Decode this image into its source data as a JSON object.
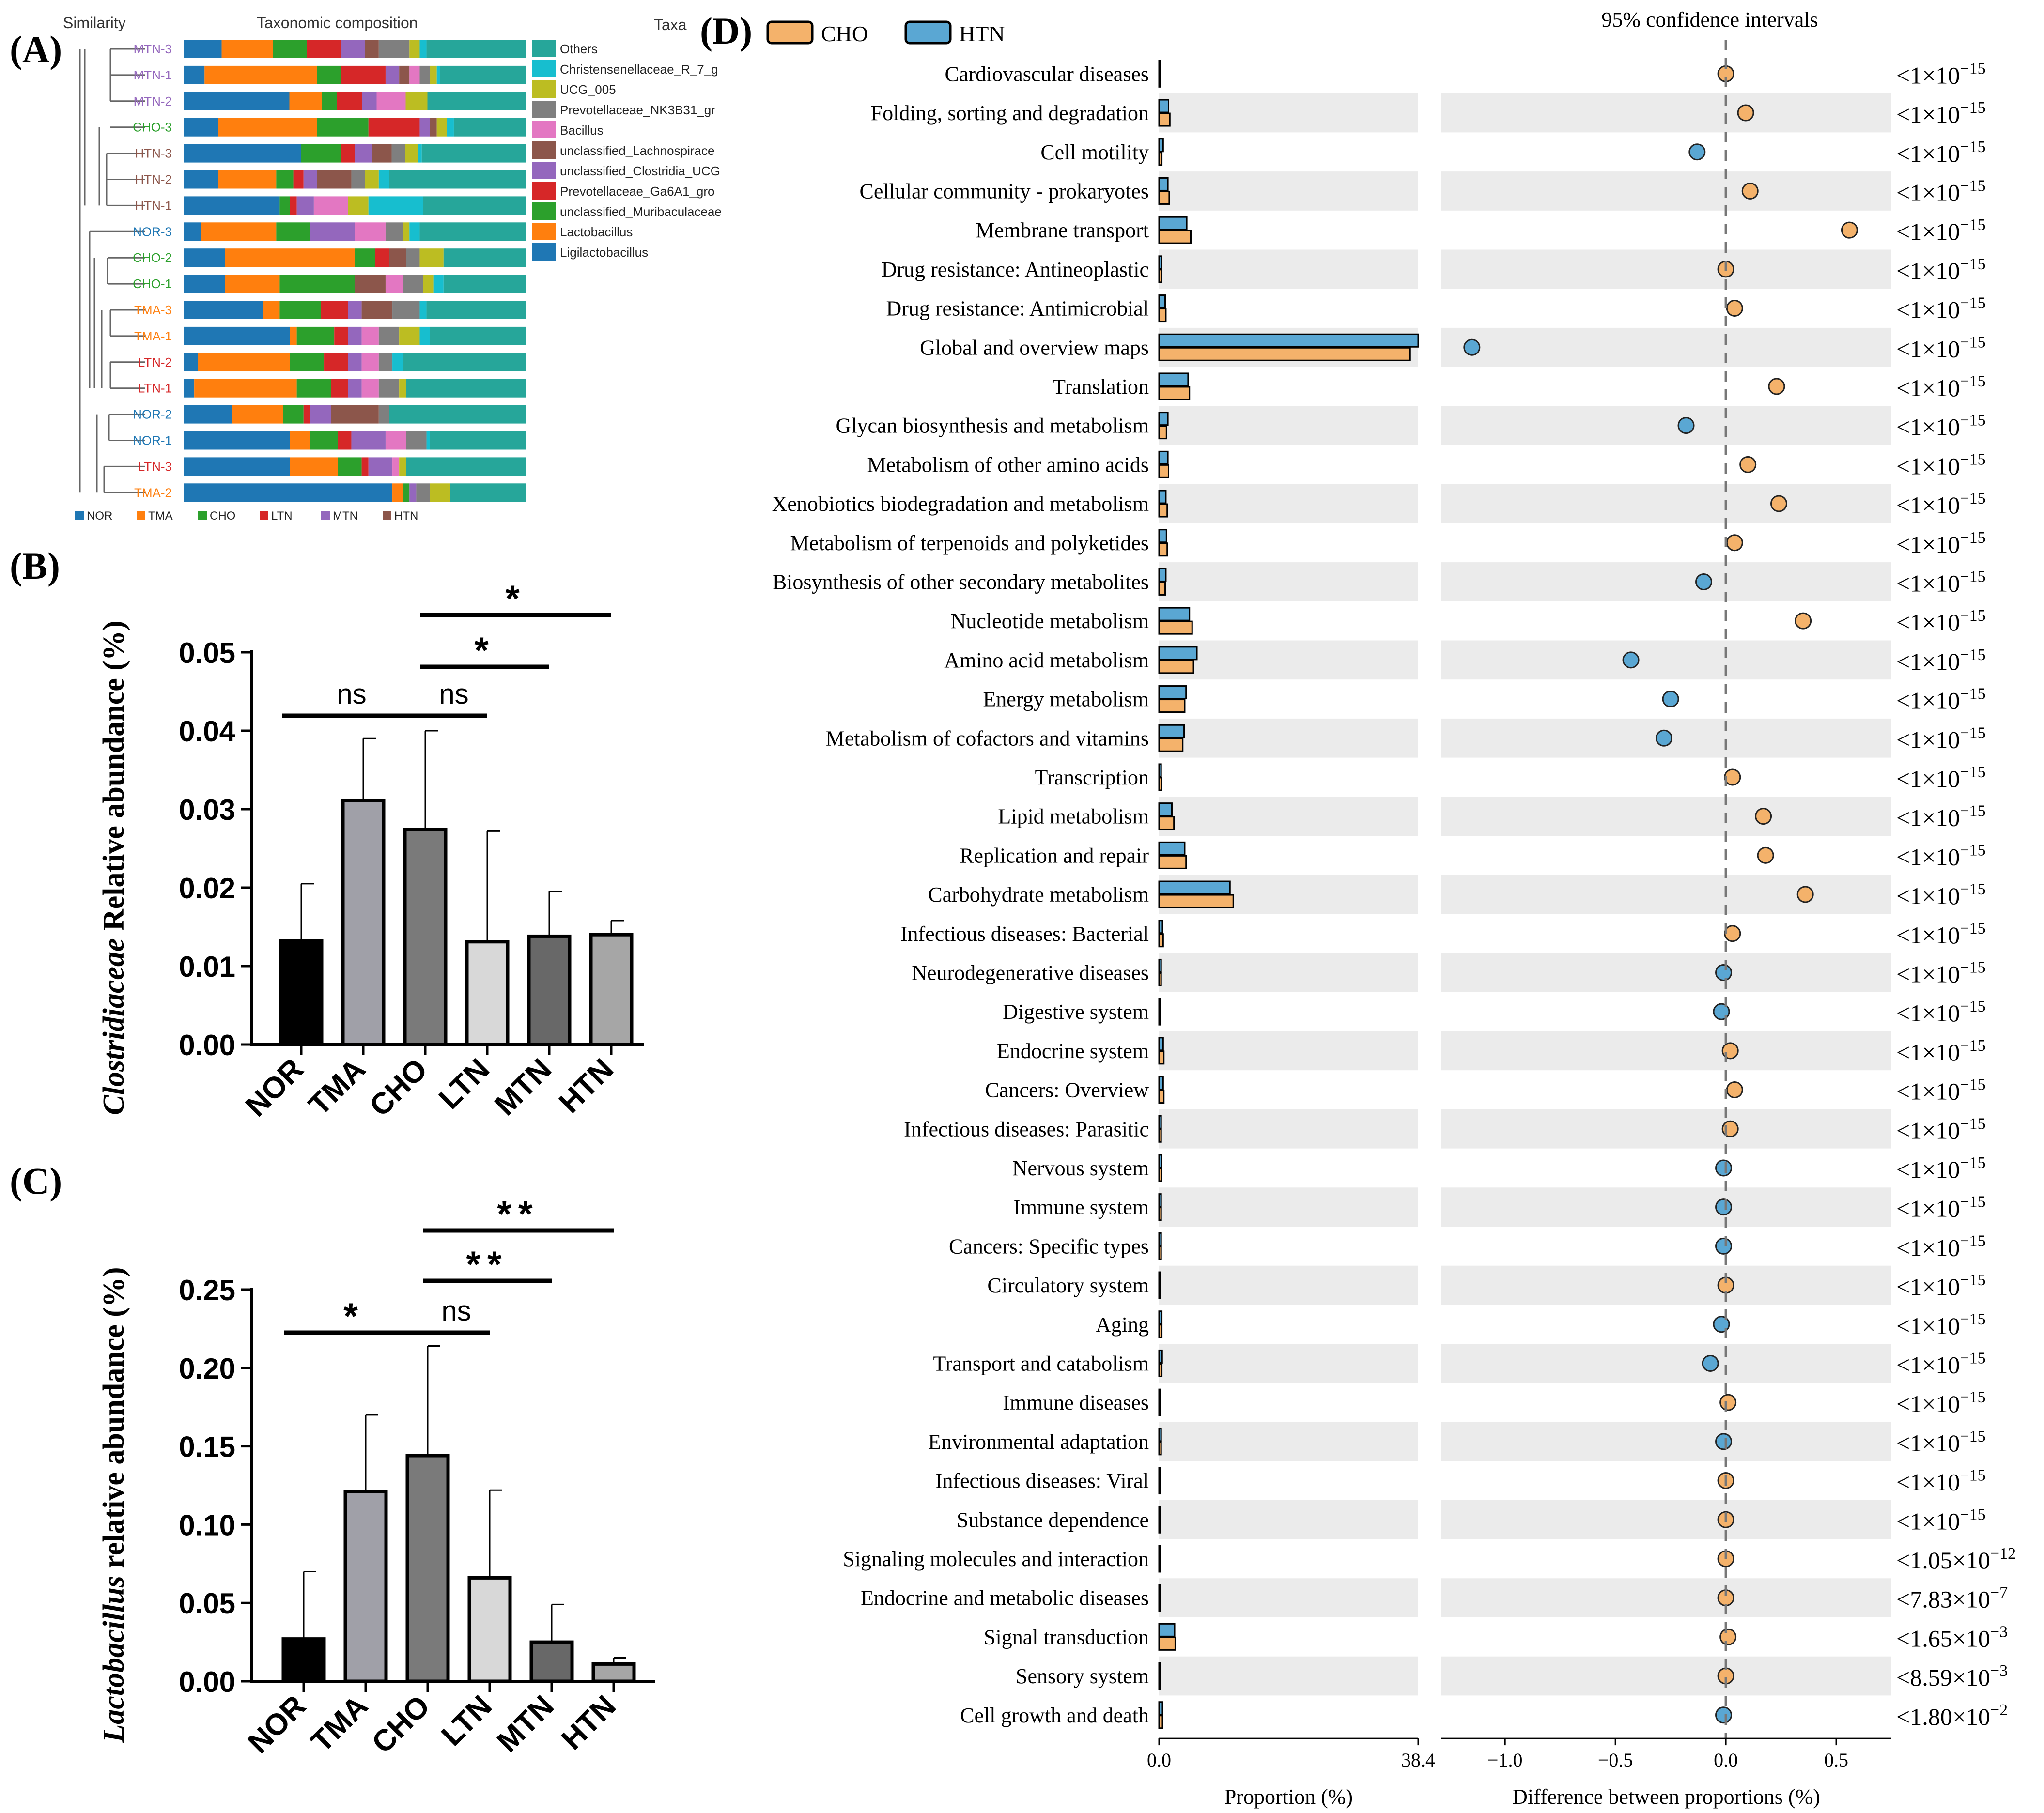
{
  "panels": {
    "a": "(A)",
    "b": "(B)",
    "c": "(C)",
    "d": "(D)"
  },
  "taxonomy": {
    "header_similarity": "Similarity",
    "header_composition": "Taxonomic composition",
    "header_taxa": "Taxa",
    "colors": [
      "#1f77b4",
      "#ff7f0e",
      "#2ca02c",
      "#d62728",
      "#9467bd",
      "#8c564b",
      "#e377c2",
      "#7f7f7f",
      "#bcbd22",
      "#17becf",
      "#26a69a"
    ],
    "taxa": [
      "Ligilactobacillus",
      "Lactobacillus",
      "unclassified_Muribaculaceae",
      "Prevotellaceae_Ga6A1_group",
      "unclassified_Clostridia_UCG",
      "unclassified_Lachnospiraceae",
      "Bacillus",
      "Prevotellaceae_NK3B31_group",
      "UCG_005",
      "Christensenellaceae_R_7_group",
      "Others"
    ],
    "legend_order_labels": [
      "Others",
      "Christensenellaceae_R_7_g",
      "UCG_005",
      "Prevotellaceae_NK3B31_gr",
      "Bacillus",
      "unclassified_Lachnospirace",
      "unclassified_Clostridia_UCG",
      "Prevotellaceae_Ga6A1_gro",
      "unclassified_Muribaculaceae",
      "Lactobacillus",
      "Ligilactobacillus"
    ],
    "legend_order_colors": [
      "#26a69a",
      "#17becf",
      "#bcbd22",
      "#7f7f7f",
      "#e377c2",
      "#8c564b",
      "#9467bd",
      "#d62728",
      "#2ca02c",
      "#ff7f0e",
      "#1f77b4"
    ],
    "samples": [
      {
        "label": "MTN-3",
        "group": "MTN",
        "comp": [
          0.11,
          0.15,
          0.1,
          0.1,
          0.07,
          0.04,
          0.0,
          0.09,
          0.03,
          0.02,
          0.29
        ]
      },
      {
        "label": "MTN-1",
        "group": "MTN",
        "comp": [
          0.06,
          0.33,
          0.07,
          0.13,
          0.04,
          0.03,
          0.03,
          0.03,
          0.02,
          0.01,
          0.25
        ]
      },
      {
        "label": "MTN-2",
        "group": "MTN",
        "comp": [
          0.29,
          0.09,
          0.04,
          0.07,
          0.04,
          0.0,
          0.08,
          0.0,
          0.06,
          0.0,
          0.27
        ]
      },
      {
        "label": "CHO-3",
        "group": "CHO",
        "comp": [
          0.1,
          0.29,
          0.15,
          0.15,
          0.03,
          0.02,
          0.0,
          0.0,
          0.03,
          0.02,
          0.21
        ]
      },
      {
        "label": "HTN-3",
        "group": "HTN",
        "comp": [
          0.35,
          0.0,
          0.12,
          0.04,
          0.05,
          0.06,
          0.0,
          0.04,
          0.04,
          0.01,
          0.31
        ]
      },
      {
        "label": "HTN-2",
        "group": "HTN",
        "comp": [
          0.1,
          0.17,
          0.05,
          0.03,
          0.04,
          0.1,
          0.0,
          0.04,
          0.04,
          0.03,
          0.4
        ]
      },
      {
        "label": "HTN-1",
        "group": "HTN",
        "comp": [
          0.28,
          0.0,
          0.03,
          0.02,
          0.05,
          0.0,
          0.1,
          0.0,
          0.06,
          0.16,
          0.3
        ]
      },
      {
        "label": "NOR-3",
        "group": "NOR",
        "comp": [
          0.05,
          0.22,
          0.1,
          0.0,
          0.13,
          0.0,
          0.09,
          0.05,
          0.02,
          0.03,
          0.31
        ]
      },
      {
        "label": "CHO-2",
        "group": "CHO",
        "comp": [
          0.12,
          0.38,
          0.06,
          0.04,
          0.0,
          0.05,
          0.0,
          0.04,
          0.07,
          0.0,
          0.24
        ]
      },
      {
        "label": "CHO-1",
        "group": "CHO",
        "comp": [
          0.12,
          0.16,
          0.22,
          0.0,
          0.0,
          0.09,
          0.05,
          0.06,
          0.03,
          0.03,
          0.24
        ]
      },
      {
        "label": "TMA-3",
        "group": "TMA",
        "comp": [
          0.23,
          0.05,
          0.12,
          0.08,
          0.04,
          0.09,
          0.0,
          0.08,
          0.0,
          0.02,
          0.29
        ]
      },
      {
        "label": "TMA-1",
        "group": "TMA",
        "comp": [
          0.31,
          0.02,
          0.11,
          0.04,
          0.04,
          0.0,
          0.05,
          0.06,
          0.06,
          0.03,
          0.28
        ]
      },
      {
        "label": "LTN-2",
        "group": "LTN",
        "comp": [
          0.04,
          0.27,
          0.1,
          0.07,
          0.04,
          0.0,
          0.05,
          0.04,
          0.0,
          0.03,
          0.36
        ]
      },
      {
        "label": "LTN-1",
        "group": "LTN",
        "comp": [
          0.03,
          0.3,
          0.1,
          0.05,
          0.04,
          0.0,
          0.05,
          0.06,
          0.02,
          0.0,
          0.35
        ]
      },
      {
        "label": "NOR-2",
        "group": "NOR",
        "comp": [
          0.14,
          0.15,
          0.06,
          0.02,
          0.06,
          0.14,
          0.0,
          0.03,
          0.0,
          0.0,
          0.4
        ]
      },
      {
        "label": "NOR-1",
        "group": "NOR",
        "comp": [
          0.31,
          0.06,
          0.08,
          0.04,
          0.1,
          0.0,
          0.06,
          0.06,
          0.0,
          0.01,
          0.28
        ]
      },
      {
        "label": "LTN-3",
        "group": "LTN",
        "comp": [
          0.31,
          0.14,
          0.07,
          0.02,
          0.07,
          0.0,
          0.02,
          0.0,
          0.02,
          0.0,
          0.35
        ]
      },
      {
        "label": "TMA-2",
        "group": "TMA",
        "comp": [
          0.61,
          0.03,
          0.02,
          0.0,
          0.02,
          0.0,
          0.0,
          0.04,
          0.06,
          0.0,
          0.22
        ]
      }
    ],
    "group_legend": [
      {
        "label": "NOR",
        "color": "#1f77b4"
      },
      {
        "label": "TMA",
        "color": "#ff7f0e"
      },
      {
        "label": "CHO",
        "color": "#2ca02c"
      },
      {
        "label": "LTN",
        "color": "#d62728"
      },
      {
        "label": "MTN",
        "color": "#9467bd"
      },
      {
        "label": "HTN",
        "color": "#8c564b"
      }
    ]
  },
  "chart_data": [
    {
      "type": "bar",
      "panel": "B",
      "ylabel_italic": "Clostridiaceae",
      "ylabel_rest": " Relative abundance (%)",
      "categories": [
        "NOR",
        "TMA",
        "CHO",
        "LTN",
        "MTN",
        "HTN"
      ],
      "values": [
        0.0132,
        0.0311,
        0.0274,
        0.0131,
        0.0138,
        0.014
      ],
      "errors": [
        0.0073,
        0.0079,
        0.0126,
        0.0141,
        0.0057,
        0.0018
      ],
      "fills": [
        "#000000",
        "#a0a0a8",
        "#7a7a7a",
        "#d8d8d8",
        "#686868",
        "#a6a6a6"
      ],
      "ylim": [
        0,
        0.05
      ],
      "yticks": [
        "0.00",
        "0.01",
        "0.02",
        "0.03",
        "0.04",
        "0.05"
      ],
      "significance": [
        {
          "from": "NOR",
          "to": "CHO",
          "label": "ns"
        },
        {
          "from": "CHO",
          "to": "LTN",
          "label": "ns"
        },
        {
          "from": "CHO",
          "to": "MTN",
          "label": "*"
        },
        {
          "from": "CHO",
          "to": "HTN",
          "label": "*"
        }
      ]
    },
    {
      "type": "bar",
      "panel": "C",
      "ylabel_italic": "Lactobacillus",
      "ylabel_rest": " relative abundance (%)",
      "categories": [
        "NOR",
        "TMA",
        "CHO",
        "LTN",
        "MTN",
        "HTN"
      ],
      "values": [
        0.027,
        0.121,
        0.144,
        0.066,
        0.025,
        0.011
      ],
      "errors": [
        0.043,
        0.049,
        0.07,
        0.056,
        0.024,
        0.004
      ],
      "fills": [
        "#000000",
        "#a0a0a8",
        "#7a7a7a",
        "#d8d8d8",
        "#686868",
        "#a6a6a6"
      ],
      "ylim": [
        0,
        0.25
      ],
      "yticks": [
        "0.00",
        "0.05",
        "0.10",
        "0.15",
        "0.20",
        "0.25"
      ],
      "significance": [
        {
          "from": "NOR",
          "to": "CHO",
          "label": "*"
        },
        {
          "from": "CHO",
          "to": "LTN",
          "label": "ns"
        },
        {
          "from": "CHO",
          "to": "MTN",
          "label": "**"
        },
        {
          "from": "CHO",
          "to": "HTN",
          "label": "**"
        }
      ]
    },
    {
      "type": "extended_error_bar",
      "panel": "D",
      "legend": [
        {
          "name": "CHO",
          "color": "#f4b26b"
        },
        {
          "name": "HTN",
          "color": "#5aa7d3"
        }
      ],
      "ci_title": "95% confidence intervals",
      "xlabel_left": "Proportion (%)",
      "xlabel_right": "Difference between proportions (%)",
      "left_ticks": [
        "0.0",
        "38.4"
      ],
      "left_max": 38.4,
      "right_ticks": [
        {
          "value": -1.0,
          "label": "−1.0"
        },
        {
          "value": -0.5,
          "label": "−0.5"
        },
        {
          "value": 0.0,
          "label": "0.0"
        },
        {
          "value": 0.5,
          "label": "0.5"
        }
      ],
      "right_range": [
        -1.29,
        0.75
      ],
      "pathways": [
        {
          "name": "Cardiovascular diseases",
          "cho": 0.15,
          "htn": 0.15,
          "diff": 0.0,
          "p_mant": "1",
          "p_exp": "−15"
        },
        {
          "name": "Folding, sorting and degradation",
          "cho": 1.6,
          "htn": 1.4,
          "diff": 0.09,
          "p_mant": "1",
          "p_exp": "−15"
        },
        {
          "name": "Cell motility",
          "cho": 0.4,
          "htn": 0.6,
          "diff": -0.13,
          "p_mant": "1",
          "p_exp": "−15"
        },
        {
          "name": "Cellular community - prokaryotes",
          "cho": 1.5,
          "htn": 1.3,
          "diff": 0.11,
          "p_mant": "1",
          "p_exp": "−15"
        },
        {
          "name": "Membrane transport",
          "cho": 4.7,
          "htn": 4.1,
          "diff": 0.56,
          "p_mant": "1",
          "p_exp": "−15"
        },
        {
          "name": "Drug resistance: Antineoplastic",
          "cho": 0.35,
          "htn": 0.35,
          "diff": 0.0,
          "p_mant": "1",
          "p_exp": "−15"
        },
        {
          "name": "Drug resistance: Antimicrobial",
          "cho": 1.0,
          "htn": 0.9,
          "diff": 0.04,
          "p_mant": "1",
          "p_exp": "−15"
        },
        {
          "name": "Global and overview maps",
          "cho": 37.2,
          "htn": 38.4,
          "diff": -1.15,
          "p_mant": "1",
          "p_exp": "−15"
        },
        {
          "name": "Translation",
          "cho": 4.5,
          "htn": 4.3,
          "diff": 0.23,
          "p_mant": "1",
          "p_exp": "−15"
        },
        {
          "name": "Glycan biosynthesis and metabolism",
          "cho": 1.1,
          "htn": 1.3,
          "diff": -0.18,
          "p_mant": "1",
          "p_exp": "−15"
        },
        {
          "name": "Metabolism of other amino acids",
          "cho": 1.4,
          "htn": 1.3,
          "diff": 0.1,
          "p_mant": "1",
          "p_exp": "−15"
        },
        {
          "name": "Xenobiotics biodegradation and metabolism",
          "cho": 1.2,
          "htn": 1.0,
          "diff": 0.24,
          "p_mant": "1",
          "p_exp": "−15"
        },
        {
          "name": "Metabolism of terpenoids and polyketides",
          "cho": 1.2,
          "htn": 1.1,
          "diff": 0.04,
          "p_mant": "1",
          "p_exp": "−15"
        },
        {
          "name": "Biosynthesis of other secondary metabolites",
          "cho": 0.9,
          "htn": 1.0,
          "diff": -0.1,
          "p_mant": "1",
          "p_exp": "−15"
        },
        {
          "name": "Nucleotide metabolism",
          "cho": 4.9,
          "htn": 4.5,
          "diff": 0.35,
          "p_mant": "1",
          "p_exp": "−15"
        },
        {
          "name": "Amino acid metabolism",
          "cho": 5.1,
          "htn": 5.6,
          "diff": -0.43,
          "p_mant": "1",
          "p_exp": "−15"
        },
        {
          "name": "Energy metabolism",
          "cho": 3.8,
          "htn": 4.0,
          "diff": -0.25,
          "p_mant": "1",
          "p_exp": "−15"
        },
        {
          "name": "Metabolism of cofactors and vitamins",
          "cho": 3.5,
          "htn": 3.7,
          "diff": -0.28,
          "p_mant": "1",
          "p_exp": "−15"
        },
        {
          "name": "Transcription",
          "cho": 0.35,
          "htn": 0.3,
          "diff": 0.03,
          "p_mant": "1",
          "p_exp": "−15"
        },
        {
          "name": "Lipid metabolism",
          "cho": 2.2,
          "htn": 1.9,
          "diff": 0.17,
          "p_mant": "1",
          "p_exp": "−15"
        },
        {
          "name": "Replication and repair",
          "cho": 4.0,
          "htn": 3.8,
          "diff": 0.18,
          "p_mant": "1",
          "p_exp": "−15"
        },
        {
          "name": "Carbohydrate metabolism",
          "cho": 11.0,
          "htn": 10.5,
          "diff": 0.36,
          "p_mant": "1",
          "p_exp": "−15"
        },
        {
          "name": "Infectious diseases: Bacterial",
          "cho": 0.6,
          "htn": 0.5,
          "diff": 0.03,
          "p_mant": "1",
          "p_exp": "−15"
        },
        {
          "name": "Neurodegenerative diseases",
          "cho": 0.3,
          "htn": 0.3,
          "diff": -0.01,
          "p_mant": "1",
          "p_exp": "−15"
        },
        {
          "name": "Digestive system",
          "cho": 0.2,
          "htn": 0.2,
          "diff": -0.02,
          "p_mant": "1",
          "p_exp": "−15"
        },
        {
          "name": "Endocrine system",
          "cho": 0.7,
          "htn": 0.6,
          "diff": 0.02,
          "p_mant": "1",
          "p_exp": "−15"
        },
        {
          "name": "Cancers: Overview",
          "cho": 0.7,
          "htn": 0.6,
          "diff": 0.04,
          "p_mant": "1",
          "p_exp": "−15"
        },
        {
          "name": "Infectious diseases: Parasitic",
          "cho": 0.3,
          "htn": 0.3,
          "diff": 0.02,
          "p_mant": "1",
          "p_exp": "−15"
        },
        {
          "name": "Nervous system",
          "cho": 0.35,
          "htn": 0.35,
          "diff": -0.01,
          "p_mant": "1",
          "p_exp": "−15"
        },
        {
          "name": "Immune system",
          "cho": 0.3,
          "htn": 0.3,
          "diff": -0.01,
          "p_mant": "1",
          "p_exp": "−15"
        },
        {
          "name": "Cancers: Specific types",
          "cho": 0.3,
          "htn": 0.3,
          "diff": -0.01,
          "p_mant": "1",
          "p_exp": "−15"
        },
        {
          "name": "Circulatory system",
          "cho": 0.2,
          "htn": 0.2,
          "diff": 0.0,
          "p_mant": "1",
          "p_exp": "−15"
        },
        {
          "name": "Aging",
          "cho": 0.4,
          "htn": 0.4,
          "diff": -0.02,
          "p_mant": "1",
          "p_exp": "−15"
        },
        {
          "name": "Transport and catabolism",
          "cho": 0.4,
          "htn": 0.45,
          "diff": -0.07,
          "p_mant": "1",
          "p_exp": "−15"
        },
        {
          "name": "Immune diseases",
          "cho": 0.25,
          "htn": 0.2,
          "diff": 0.01,
          "p_mant": "1",
          "p_exp": "−15"
        },
        {
          "name": "Environmental adaptation",
          "cho": 0.3,
          "htn": 0.3,
          "diff": -0.01,
          "p_mant": "1",
          "p_exp": "−15"
        },
        {
          "name": "Infectious diseases: Viral",
          "cho": 0.2,
          "htn": 0.2,
          "diff": 0.0,
          "p_mant": "1",
          "p_exp": "−15"
        },
        {
          "name": "Substance dependence",
          "cho": 0.2,
          "htn": 0.2,
          "diff": 0.0,
          "p_mant": "1",
          "p_exp": "−15"
        },
        {
          "name": "Signaling molecules and interaction",
          "cho": 0.2,
          "htn": 0.2,
          "diff": 0.0,
          "p_mant": "1.05",
          "p_exp": "−12"
        },
        {
          "name": "Endocrine and metabolic diseases",
          "cho": 0.2,
          "htn": 0.2,
          "diff": 0.0,
          "p_mant": "7.83",
          "p_exp": "−7"
        },
        {
          "name": "Signal transduction",
          "cho": 2.4,
          "htn": 2.3,
          "diff": 0.01,
          "p_mant": "1.65",
          "p_exp": "−3"
        },
        {
          "name": "Sensory system",
          "cho": 0.15,
          "htn": 0.15,
          "diff": 0.0,
          "p_mant": "8.59",
          "p_exp": "−3"
        },
        {
          "name": "Cell growth and death",
          "cho": 0.5,
          "htn": 0.5,
          "diff": -0.01,
          "p_mant": "1.80",
          "p_exp": "−2"
        }
      ]
    }
  ]
}
